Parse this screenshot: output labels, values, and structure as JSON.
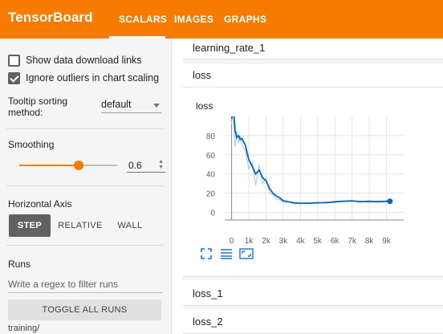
{
  "app": {
    "title": "TensorBoard"
  },
  "nav": {
    "tabs": [
      "SCALARS",
      "IMAGES",
      "GRAPHS"
    ],
    "active": "SCALARS"
  },
  "sidebar": {
    "show_download_links": {
      "label": "Show data download links",
      "checked": false
    },
    "ignore_outliers": {
      "label": "Ignore outliers in chart scaling",
      "checked": true
    },
    "tooltip_sorting": {
      "label": "Tooltip sorting method:",
      "value": "default"
    },
    "smoothing": {
      "label": "Smoothing",
      "value": "0.6",
      "fraction": 0.6
    },
    "horizontal_axis": {
      "label": "Horizontal Axis",
      "options": [
        "STEP",
        "RELATIVE",
        "WALL"
      ],
      "selected": "STEP"
    },
    "runs": {
      "label": "Runs",
      "filter_placeholder": "Write a regex to filter runs",
      "toggle_all_label": "TOGGLE ALL RUNS",
      "first_run": "training/"
    }
  },
  "main": {
    "cards": {
      "learning_rate": "learning_rate_1",
      "loss_group": "loss",
      "loss_1": "loss_1",
      "loss_2": "loss_2"
    },
    "chart_title": "loss"
  },
  "colors": {
    "accent": "#f57c00",
    "line": "#0b64b4",
    "line_raw": "#a6d3f2"
  },
  "icons": [
    "fit-domain-icon",
    "toggle-log-scale-icon",
    "expand-chart-icon"
  ],
  "chart_data": {
    "type": "line",
    "title": "loss",
    "xlabel": "",
    "ylabel": "",
    "x_ticks": [
      "0",
      "1k",
      "2k",
      "3k",
      "4k",
      "5k",
      "6k",
      "7k",
      "8k",
      "9k"
    ],
    "y_ticks": [
      "0",
      "20",
      "40",
      "60",
      "80"
    ],
    "xlim": [
      -400,
      10000
    ],
    "ylim": [
      -8,
      100
    ],
    "grid": true,
    "series": [
      {
        "smoothed": true,
        "x": [
          0,
          100,
          200,
          300,
          400,
          500,
          600,
          800,
          1000,
          1200,
          1400,
          1600,
          1800,
          2000,
          2200,
          2400,
          2600,
          2800,
          3000,
          3300,
          3600,
          4000,
          4500,
          5000,
          5500,
          6000,
          6500,
          7000,
          7500,
          8000,
          8500,
          9000,
          9200
        ],
        "y": [
          98,
          110,
          85,
          78,
          80,
          76,
          77,
          70,
          55,
          48,
          40,
          44,
          36,
          33,
          25,
          20,
          17,
          15,
          12,
          11,
          10,
          9.5,
          9.5,
          10,
          10,
          11,
          11.5,
          12,
          11,
          11.5,
          11,
          11.5,
          11.5
        ]
      },
      {
        "smoothed": false,
        "x": [
          0,
          100,
          200,
          300,
          400,
          500,
          600,
          800,
          1000,
          1200,
          1400,
          1600,
          1800,
          2000,
          2200,
          2400,
          2600,
          2800,
          3000,
          3300,
          3600,
          4000,
          4500,
          5000,
          5500,
          6000,
          6500,
          7000,
          7500,
          8000,
          8500,
          9000,
          9200
        ],
        "y": [
          92,
          105,
          68,
          85,
          72,
          80,
          70,
          65,
          45,
          52,
          28,
          50,
          30,
          36,
          20,
          18,
          14,
          13,
          10,
          11,
          9,
          9,
          10,
          9,
          11,
          10,
          12,
          11,
          12,
          10,
          12,
          11,
          11
        ]
      }
    ]
  }
}
